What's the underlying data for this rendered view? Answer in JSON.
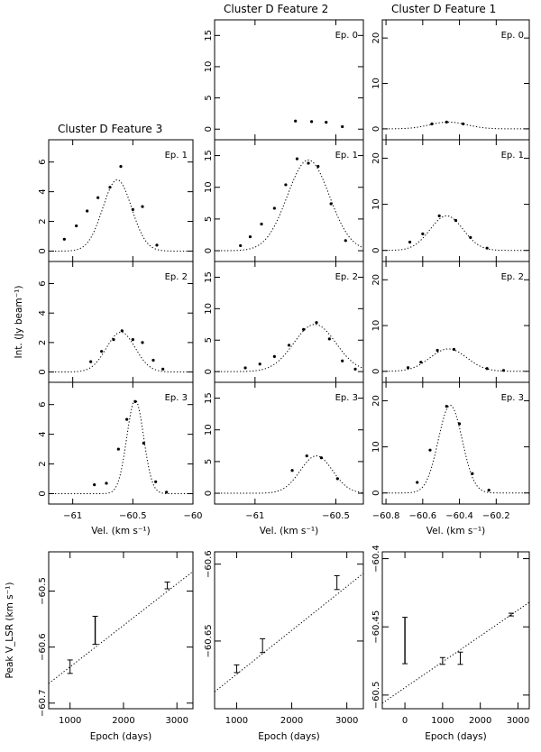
{
  "chart_data": {
    "type": "scatter",
    "description_title": "Cluster D spectral fits and peak velocity drift",
    "features": [
      {
        "title": "Cluster D   Feature 3",
        "vel_range": [
          -61.2,
          -60.0
        ],
        "vel_ticks": [
          -61,
          -60.5,
          -60
        ],
        "vel_tick_labels": [
          "−61",
          "−60.5",
          "−60"
        ],
        "int_range": [
          -0.7,
          7.5
        ],
        "int_ticks": [
          0,
          2,
          4,
          6
        ],
        "int_tick_labels": [
          "0",
          "2",
          "4",
          "6"
        ],
        "epochs": [
          {
            "label": "Ep. 1",
            "fit": {
              "amp": 4.8,
              "center": -60.63,
              "sigma": 0.12
            },
            "x": [
              -61.07,
              -60.97,
              -60.88,
              -60.79,
              -60.69,
              -60.6,
              -60.5,
              -60.42,
              -60.3
            ],
            "y": [
              0.8,
              1.7,
              2.7,
              3.6,
              4.3,
              5.7,
              2.8,
              3.0,
              0.4
            ]
          },
          {
            "label": "Ep. 2",
            "fit": {
              "amp": 2.7,
              "center": -60.6,
              "sigma": 0.12
            },
            "x": [
              -60.85,
              -60.76,
              -60.66,
              -60.59,
              -60.5,
              -60.42,
              -60.33,
              -60.25
            ],
            "y": [
              0.7,
              1.4,
              2.2,
              2.8,
              2.2,
              2.0,
              0.8,
              0.2
            ]
          },
          {
            "label": "Ep. 3",
            "fit": {
              "amp": 6.3,
              "center": -60.48,
              "sigma": 0.07
            },
            "x": [
              -60.82,
              -60.72,
              -60.62,
              -60.55,
              -60.48,
              -60.41,
              -60.31,
              -60.22
            ],
            "y": [
              0.6,
              0.7,
              3.0,
              5.0,
              6.2,
              3.4,
              0.8,
              0.1
            ]
          }
        ],
        "drift": {
          "ylabel": "Peak V_LSR (km s⁻¹)",
          "x_range": [
            600,
            3300
          ],
          "x_ticks": [
            1000,
            2000,
            3000
          ],
          "x_tick_labels": [
            "1000",
            "2000",
            "3000"
          ],
          "y_range": [
            -60.71,
            -60.43
          ],
          "y_ticks": [
            -60.7,
            -60.6,
            -60.5
          ],
          "y_tick_labels": [
            "−60.7",
            "−60.6",
            "−60.5"
          ],
          "points": [
            {
              "epoch": 1000,
              "vlsr": -60.635,
              "err": 0.012
            },
            {
              "epoch": 1470,
              "vlsr": -60.57,
              "err": 0.025
            },
            {
              "epoch": 2820,
              "vlsr": -60.49,
              "err": 0.006
            }
          ],
          "line": {
            "x": [
              600,
              3300
            ],
            "y": [
              -60.665,
              -60.465
            ]
          }
        }
      },
      {
        "title": "Cluster D   Feature 2",
        "vel_range": [
          -61.25,
          -60.33
        ],
        "vel_ticks": [
          -61,
          -60.5
        ],
        "vel_tick_labels": [
          "−61",
          "−60.5"
        ],
        "int_range": [
          -1.7,
          17.5
        ],
        "int_ticks": [
          0,
          5,
          10,
          15
        ],
        "int_tick_labels": [
          "0",
          "5",
          "10",
          "15"
        ],
        "epochs": [
          {
            "label": "Ep. 0",
            "fit": null,
            "x": [
              -60.75,
              -60.65,
              -60.56,
              -60.46
            ],
            "y": [
              1.3,
              1.2,
              1.1,
              0.4
            ]
          },
          {
            "label": "Ep. 1",
            "fit": {
              "amp": 14.3,
              "center": -60.67,
              "sigma": 0.13
            },
            "x": [
              -61.09,
              -61.03,
              -60.96,
              -60.88,
              -60.81,
              -60.74,
              -60.67,
              -60.61,
              -60.53,
              -60.44
            ],
            "y": [
              0.8,
              2.2,
              4.2,
              6.7,
              10.4,
              14.5,
              13.8,
              13.3,
              7.4,
              1.6
            ]
          },
          {
            "label": "Ep. 2",
            "fit": {
              "amp": 7.5,
              "center": -60.63,
              "sigma": 0.13
            },
            "x": [
              -61.06,
              -60.97,
              -60.88,
              -60.79,
              -60.7,
              -60.62,
              -60.54,
              -60.46,
              -60.38
            ],
            "y": [
              0.6,
              1.2,
              2.4,
              4.2,
              6.7,
              7.8,
              5.2,
              1.7,
              0.4
            ]
          },
          {
            "label": "Ep. 3",
            "fit": {
              "amp": 5.9,
              "center": -60.62,
              "sigma": 0.1
            },
            "x": [
              -60.77,
              -60.68,
              -60.59,
              -60.49
            ],
            "y": [
              3.6,
              5.9,
              5.6,
              2.3
            ]
          }
        ],
        "drift": {
          "ylabel": "",
          "x_range": [
            600,
            3300
          ],
          "x_ticks": [
            1000,
            2000,
            3000
          ],
          "x_tick_labels": [
            "1000",
            "2000",
            "3000"
          ],
          "y_range": [
            -60.694,
            -60.592
          ],
          "y_ticks": [
            -60.65,
            -60.6
          ],
          "y_tick_labels": [
            "−60.65",
            "−60.6"
          ],
          "points": [
            {
              "epoch": 1000,
              "vlsr": -60.668,
              "err": 0.0025
            },
            {
              "epoch": 1470,
              "vlsr": -60.653,
              "err": 0.0045
            },
            {
              "epoch": 2820,
              "vlsr": -60.612,
              "err": 0.0045
            }
          ],
          "line": {
            "x": [
              600,
              3300
            ],
            "y": [
              -60.683,
              -60.606
            ]
          }
        }
      },
      {
        "title": "Cluster D   Feature 1",
        "vel_range": [
          -60.82,
          -60.02
        ],
        "vel_ticks": [
          -60.8,
          -60.6,
          -60.4,
          -60.2
        ],
        "vel_tick_labels": [
          "−60.8",
          "−60.6",
          "−60.4",
          "−60.2"
        ],
        "int_range": [
          -2.4,
          24.0
        ],
        "int_ticks": [
          0,
          10,
          20
        ],
        "int_tick_labels": [
          "0",
          "10",
          "20"
        ],
        "epochs": [
          {
            "label": "Ep. 0",
            "fit": {
              "amp": 1.5,
              "center": -60.46,
              "sigma": 0.1
            },
            "x": [
              -60.55,
              -60.47,
              -60.38
            ],
            "y": [
              1.1,
              1.5,
              1.1
            ]
          },
          {
            "label": "Ep. 1",
            "fit": {
              "amp": 7.5,
              "center": -60.47,
              "sigma": 0.09
            },
            "x": [
              -60.67,
              -60.6,
              -60.51,
              -60.42,
              -60.34,
              -60.25
            ],
            "y": [
              1.8,
              3.6,
              7.5,
              6.5,
              2.8,
              0.5
            ]
          },
          {
            "label": "Ep. 2",
            "fit": {
              "amp": 4.9,
              "center": -60.46,
              "sigma": 0.1
            },
            "x": [
              -60.68,
              -60.61,
              -60.52,
              -60.43,
              -60.25,
              -60.16
            ],
            "y": [
              0.8,
              2.0,
              4.6,
              4.8,
              0.6,
              0.2
            ]
          },
          {
            "label": "Ep. 3",
            "fit": {
              "amp": 19.0,
              "center": -60.45,
              "sigma": 0.065
            },
            "x": [
              -60.63,
              -60.56,
              -60.47,
              -60.4,
              -60.33,
              -60.24
            ],
            "y": [
              2.3,
              9.3,
              18.8,
              15.0,
              4.2,
              0.6
            ]
          }
        ],
        "drift": {
          "ylabel": "",
          "x_range": [
            -600,
            3300
          ],
          "x_ticks": [
            0,
            1000,
            2000,
            3000
          ],
          "x_tick_labels": [
            "0",
            "1000",
            "2000",
            "3000"
          ],
          "y_range": [
            -60.51,
            -60.395
          ],
          "y_ticks": [
            -60.5,
            -60.45,
            -60.4
          ],
          "y_tick_labels": [
            "−60.5",
            "−60.45",
            "−60.4"
          ],
          "points": [
            {
              "epoch": 0,
              "vlsr": -60.46,
              "err": 0.017
            },
            {
              "epoch": 1000,
              "vlsr": -60.475,
              "err": 0.0025
            },
            {
              "epoch": 1470,
              "vlsr": -60.473,
              "err": 0.0045
            },
            {
              "epoch": 2820,
              "vlsr": -60.441,
              "err": 0.001
            }
          ],
          "line": {
            "x": [
              -600,
              3300
            ],
            "y": [
              -60.506,
              -60.432
            ]
          }
        }
      }
    ],
    "xlabel_spectra": "Vel. (km s⁻¹)",
    "ylabel_spectra": "Int. (Jy beam⁻¹)",
    "xlabel_drift": "Epoch (days)"
  }
}
